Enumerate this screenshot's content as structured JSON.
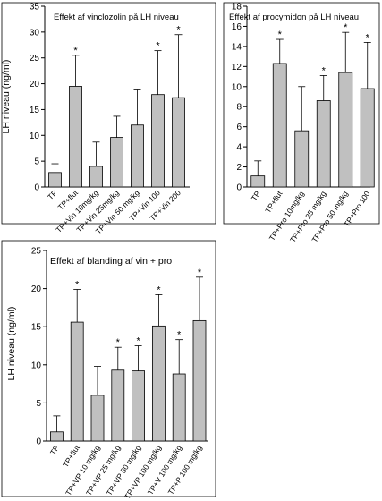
{
  "chart_data": [
    {
      "type": "bar",
      "title": "Effekt af vinclozolin på LH niveau",
      "ylabel": "LH niveau (ng/ml)",
      "ylim": [
        0,
        35
      ],
      "yticks": [
        0,
        5,
        10,
        15,
        20,
        25,
        30,
        35
      ],
      "categories": [
        "TP",
        "TP+flut",
        "TP+Vin 10mg/kg",
        "TP+Vin 25mg/kg",
        "TP+Vin 50 mg/kg",
        "TP+Vin 100",
        "TP+Vin 200"
      ],
      "values": [
        2.8,
        19.5,
        4.0,
        9.6,
        12.0,
        17.9,
        17.3
      ],
      "errors": [
        1.7,
        6.0,
        4.7,
        4.1,
        6.8,
        8.5,
        12.2
      ],
      "significance": [
        "",
        "*",
        "",
        "",
        "",
        "*",
        "*"
      ],
      "bar_color": "#c0c0c0"
    },
    {
      "type": "bar",
      "title": "Effekt af procymidon på LH niveau",
      "ylabel": "",
      "ylim": [
        0,
        18
      ],
      "yticks": [
        0,
        2,
        4,
        6,
        8,
        10,
        12,
        14,
        16,
        18
      ],
      "categories": [
        "TP",
        "TP+flut",
        "TP+Pro 10mg/kg",
        "TP+Pro 25 mg/kg",
        "TP+Pro 50 mg/kg",
        "TP+Pro 100"
      ],
      "values": [
        1.1,
        12.3,
        5.6,
        8.6,
        11.4,
        9.8
      ],
      "errors": [
        1.5,
        2.4,
        4.4,
        2.5,
        4.0,
        4.6
      ],
      "significance": [
        "",
        "*",
        "",
        "*",
        "*",
        "*"
      ],
      "bar_color": "#c0c0c0"
    },
    {
      "type": "bar",
      "title": "Effekt af blanding af vin + pro",
      "ylabel": "LH niveau (ng/ml)",
      "ylim": [
        0,
        25
      ],
      "yticks": [
        0,
        5,
        10,
        15,
        20,
        25
      ],
      "categories": [
        "TP",
        "TP+flut",
        "TP+VP 10 mg/kg",
        "TP+VP 25 mg/kg",
        "TP+VP 50 mg/kg",
        "TP+VP 100 mg/kg",
        "TP+V 100 mg/kg",
        "TP+P 100 mg/kg"
      ],
      "values": [
        1.2,
        15.6,
        6.0,
        9.3,
        9.2,
        15.1,
        8.8,
        15.8
      ],
      "errors": [
        2.1,
        4.3,
        3.8,
        3.0,
        3.3,
        4.1,
        4.5,
        5.7
      ],
      "significance": [
        "",
        "*",
        "",
        "*",
        "*",
        "*",
        "*",
        "*"
      ],
      "bar_color": "#c0c0c0"
    }
  ]
}
